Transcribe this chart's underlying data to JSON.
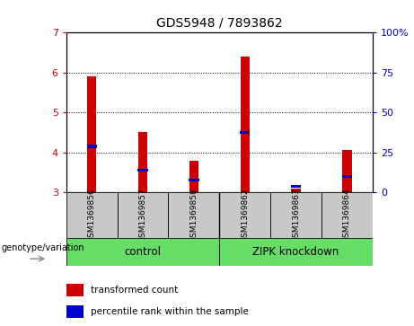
{
  "title": "GDS5948 / 7893862",
  "samples": [
    "GSM1369856",
    "GSM1369857",
    "GSM1369858",
    "GSM1369862",
    "GSM1369863",
    "GSM1369864"
  ],
  "red_values": [
    5.9,
    4.5,
    3.78,
    6.4,
    3.1,
    4.05
  ],
  "blue_values": [
    4.15,
    3.55,
    3.3,
    4.5,
    3.15,
    3.4
  ],
  "ylim": [
    3.0,
    7.0
  ],
  "yticks": [
    3,
    4,
    5,
    6,
    7
  ],
  "right_yticks": [
    0,
    25,
    50,
    75,
    100
  ],
  "bar_width": 0.18,
  "red_color": "#CC0000",
  "blue_color": "#0000CC",
  "bg_gray": "#C8C8C8",
  "green_color": "#66DD66",
  "plot_bg": "#FFFFFF",
  "left_tick_color": "#CC0000",
  "right_tick_color": "#0000CC",
  "legend_red": "transformed count",
  "legend_blue": "percentile rank within the sample",
  "genotype_label": "genotype/variation",
  "base_value": 3.0,
  "group1_label": "control",
  "group2_label": "ZIPK knockdown",
  "group1_count": 3,
  "group2_count": 3
}
